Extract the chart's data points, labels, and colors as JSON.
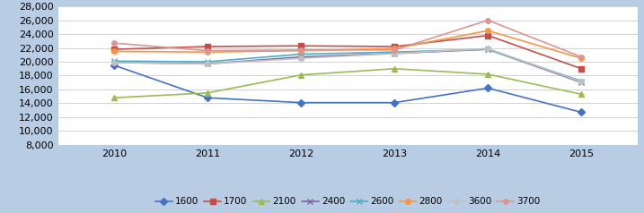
{
  "years": [
    2010,
    2011,
    2012,
    2013,
    2014,
    2015
  ],
  "series_order": [
    "1600",
    "1700",
    "2100",
    "2400",
    "2600",
    "2800",
    "3600",
    "3700"
  ],
  "series": {
    "1600": {
      "values": [
        19500,
        14800,
        14100,
        14100,
        16200,
        12700
      ],
      "color": "#4472C4",
      "marker": "D",
      "markersize": 4
    },
    "1700": {
      "values": [
        21800,
        22200,
        22300,
        22200,
        23800,
        19000
      ],
      "color": "#C0504D",
      "marker": "s",
      "markersize": 4
    },
    "2100": {
      "values": [
        14800,
        15500,
        18100,
        19000,
        18200,
        15300
      ],
      "color": "#9BBB59",
      "marker": "^",
      "markersize": 5
    },
    "2400": {
      "values": [
        19900,
        19700,
        20700,
        21200,
        21800,
        17000
      ],
      "color": "#8064A2",
      "marker": "x",
      "markersize": 5
    },
    "2600": {
      "values": [
        20100,
        20000,
        21100,
        21400,
        21800,
        17200
      ],
      "color": "#4BACC6",
      "marker": "x",
      "markersize": 5
    },
    "2800": {
      "values": [
        21500,
        21400,
        21600,
        21900,
        24500,
        20500
      ],
      "color": "#F79646",
      "marker": "o",
      "markersize": 4
    },
    "3600": {
      "values": [
        19900,
        19700,
        20500,
        21200,
        21900,
        17100
      ],
      "color": "#C0C0C0",
      "marker": "o",
      "markersize": 4
    },
    "3700": {
      "values": [
        22700,
        21600,
        21700,
        21700,
        26000,
        20700
      ],
      "color": "#DA9694",
      "marker": "o",
      "markersize": 4
    }
  },
  "ylim": [
    8000,
    28000
  ],
  "yticks": [
    8000,
    10000,
    12000,
    14000,
    16000,
    18000,
    20000,
    22000,
    24000,
    26000,
    28000
  ],
  "background_color": "#B8CCE4",
  "plot_background": "#FFFFFF",
  "grid_color": "#C0C0C0",
  "linewidth": 1.2
}
